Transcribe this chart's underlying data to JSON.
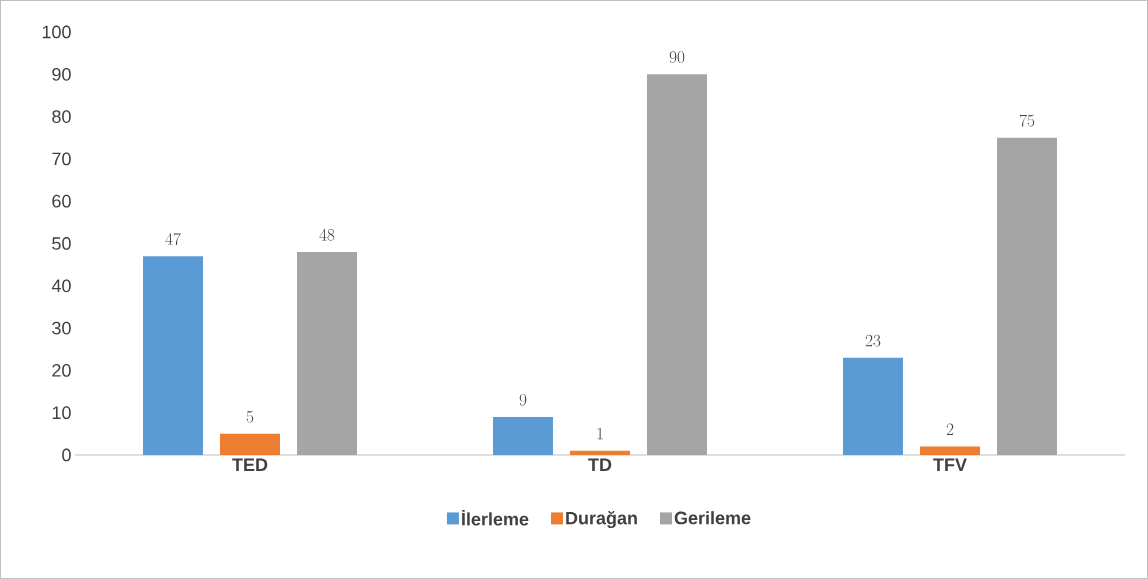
{
  "chart_data": {
    "type": "bar",
    "categories": [
      "TED",
      "TD",
      "TFV"
    ],
    "series": [
      {
        "name": "İlerleme",
        "color": "#5b9bd5",
        "values": [
          47,
          9,
          23
        ]
      },
      {
        "name": "Durağan",
        "color": "#ed7d31",
        "values": [
          5,
          1,
          2
        ]
      },
      {
        "name": "Gerileme",
        "color": "#a5a5a5",
        "values": [
          48,
          90,
          75
        ]
      }
    ],
    "ylim": [
      0,
      100
    ],
    "yticks": [
      0,
      10,
      20,
      30,
      40,
      50,
      60,
      70,
      80,
      90,
      100
    ],
    "data_labels": true,
    "legend": "bottom"
  }
}
